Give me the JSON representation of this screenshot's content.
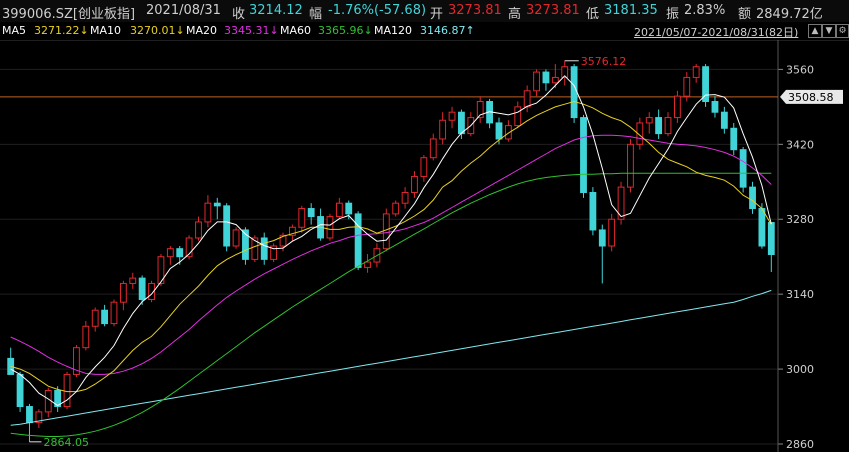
{
  "header": {
    "code": "399006.SZ[创业板指]",
    "date": "2021/08/31",
    "close_label": "收",
    "close": "3214.12",
    "change_label": "幅",
    "change": "-1.76%(-57.68)",
    "open_label": "开",
    "open": "3273.81",
    "high_label": "高",
    "high": "3273.81",
    "low_label": "低",
    "low": "3181.35",
    "amp_label": "振",
    "amp": "2.83%",
    "amount_label": "额",
    "amount": "2849.72亿"
  },
  "ma_bar": {
    "ma5_label": "MA5",
    "ma5": "3271.22↓",
    "ma10_label": "MA10",
    "ma10": "3270.01↓",
    "ma20_label": "MA20",
    "ma20": "3345.31↓",
    "ma60_label": "MA60",
    "ma60": "3365.96↓",
    "ma120_label": "MA120",
    "ma120": "3146.87↑",
    "range": "2021/05/07-2021/08/31(82日)"
  },
  "colors": {
    "up": "#e0282d",
    "down": "#40d4d8",
    "ma5": "#ffffff",
    "ma10": "#e8d020",
    "ma20": "#e030e0",
    "ma60": "#30c030",
    "ma120": "#80e8f0",
    "hline": "#c06020",
    "price_tag_bg": "#e8e8e8",
    "axis_text": "#cfcfcf"
  },
  "icons": [
    "up-arrow-icon",
    "down-arrow-icon",
    "gear-icon"
  ],
  "chart_data": {
    "type": "candlestick",
    "ylim": [
      2860,
      3600
    ],
    "y_ticks": [
      2860,
      3000,
      3140,
      3280,
      3420,
      3560
    ],
    "x_range": [
      "2021/05/07",
      "2021/08/31"
    ],
    "hline": 3508.58,
    "hline_label": "3508.58",
    "high_mark": {
      "value": 3576.12,
      "label": "3576.12",
      "index": 59
    },
    "low_mark": {
      "value": 2864.05,
      "label": "2864.05",
      "index": 2
    },
    "candles": [
      [
        3020,
        2990,
        2990,
        3040
      ],
      [
        2990,
        2930,
        2920,
        2995
      ],
      [
        2930,
        2900,
        2864,
        2935
      ],
      [
        2900,
        2920,
        2890,
        2925
      ],
      [
        2920,
        2960,
        2910,
        2965
      ],
      [
        2960,
        2930,
        2920,
        2968
      ],
      [
        2930,
        2990,
        2925,
        2995
      ],
      [
        2990,
        3040,
        2985,
        3045
      ],
      [
        3040,
        3080,
        3035,
        3090
      ],
      [
        3080,
        3110,
        3070,
        3115
      ],
      [
        3110,
        3085,
        3080,
        3120
      ],
      [
        3085,
        3125,
        3080,
        3130
      ],
      [
        3125,
        3160,
        3110,
        3165
      ],
      [
        3160,
        3170,
        3150,
        3180
      ],
      [
        3170,
        3130,
        3120,
        3175
      ],
      [
        3130,
        3160,
        3125,
        3165
      ],
      [
        3160,
        3210,
        3155,
        3215
      ],
      [
        3210,
        3225,
        3195,
        3230
      ],
      [
        3225,
        3210,
        3195,
        3230
      ],
      [
        3210,
        3245,
        3205,
        3250
      ],
      [
        3245,
        3275,
        3240,
        3285
      ],
      [
        3275,
        3310,
        3265,
        3325
      ],
      [
        3310,
        3305,
        3280,
        3320
      ],
      [
        3305,
        3230,
        3220,
        3310
      ],
      [
        3230,
        3260,
        3225,
        3265
      ],
      [
        3260,
        3205,
        3195,
        3265
      ],
      [
        3205,
        3245,
        3200,
        3250
      ],
      [
        3245,
        3205,
        3195,
        3255
      ],
      [
        3205,
        3230,
        3200,
        3235
      ],
      [
        3230,
        3250,
        3220,
        3255
      ],
      [
        3250,
        3265,
        3240,
        3270
      ],
      [
        3265,
        3300,
        3255,
        3305
      ],
      [
        3300,
        3285,
        3270,
        3310
      ],
      [
        3285,
        3245,
        3240,
        3300
      ],
      [
        3245,
        3285,
        3240,
        3290
      ],
      [
        3285,
        3310,
        3280,
        3320
      ],
      [
        3310,
        3290,
        3280,
        3315
      ],
      [
        3290,
        3190,
        3185,
        3295
      ],
      [
        3190,
        3200,
        3180,
        3215
      ],
      [
        3200,
        3225,
        3190,
        3235
      ],
      [
        3225,
        3290,
        3220,
        3300
      ],
      [
        3290,
        3310,
        3285,
        3315
      ],
      [
        3310,
        3330,
        3300,
        3340
      ],
      [
        3330,
        3360,
        3320,
        3370
      ],
      [
        3360,
        3395,
        3350,
        3400
      ],
      [
        3395,
        3430,
        3390,
        3440
      ],
      [
        3430,
        3465,
        3420,
        3480
      ],
      [
        3465,
        3480,
        3450,
        3490
      ],
      [
        3480,
        3440,
        3430,
        3485
      ],
      [
        3440,
        3470,
        3435,
        3480
      ],
      [
        3470,
        3500,
        3460,
        3510
      ],
      [
        3500,
        3460,
        3450,
        3505
      ],
      [
        3460,
        3430,
        3420,
        3470
      ],
      [
        3430,
        3455,
        3425,
        3465
      ],
      [
        3455,
        3490,
        3450,
        3500
      ],
      [
        3490,
        3520,
        3480,
        3530
      ],
      [
        3520,
        3555,
        3510,
        3560
      ],
      [
        3555,
        3535,
        3520,
        3560
      ],
      [
        3535,
        3545,
        3525,
        3570
      ],
      [
        3545,
        3565,
        3530,
        3576.12
      ],
      [
        3565,
        3470,
        3460,
        3570
      ],
      [
        3470,
        3330,
        3320,
        3475
      ],
      [
        3330,
        3260,
        3250,
        3340
      ],
      [
        3260,
        3230,
        3160,
        3270
      ],
      [
        3230,
        3280,
        3220,
        3290
      ],
      [
        3280,
        3340,
        3270,
        3350
      ],
      [
        3340,
        3420,
        3330,
        3430
      ],
      [
        3420,
        3460,
        3410,
        3470
      ],
      [
        3460,
        3470,
        3440,
        3480
      ],
      [
        3470,
        3440,
        3430,
        3485
      ],
      [
        3440,
        3470,
        3435,
        3480
      ],
      [
        3470,
        3510,
        3460,
        3520
      ],
      [
        3510,
        3545,
        3500,
        3555
      ],
      [
        3545,
        3565,
        3535,
        3570
      ],
      [
        3565,
        3500,
        3490,
        3570
      ],
      [
        3500,
        3480,
        3470,
        3510
      ],
      [
        3480,
        3450,
        3440,
        3490
      ],
      [
        3450,
        3410,
        3400,
        3460
      ],
      [
        3410,
        3340,
        3330,
        3415
      ],
      [
        3340,
        3300,
        3290,
        3350
      ],
      [
        3300,
        3230,
        3225,
        3310
      ],
      [
        3273.81,
        3214.12,
        3181.35,
        3273.81
      ]
    ],
    "ma5": [
      3000,
      2990,
      2975,
      2955,
      2944,
      2932,
      2942,
      2958,
      2984,
      3004,
      3022,
      3044,
      3076,
      3104,
      3126,
      3140,
      3163,
      3188,
      3200,
      3215,
      3235,
      3259,
      3275,
      3275,
      3270,
      3252,
      3240,
      3231,
      3225,
      3226,
      3239,
      3248,
      3261,
      3270,
      3269,
      3281,
      3287,
      3268,
      3252,
      3239,
      3241,
      3263,
      3286,
      3309,
      3339,
      3364,
      3393,
      3420,
      3441,
      3455,
      3475,
      3481,
      3478,
      3475,
      3480,
      3491,
      3497,
      3512,
      3530,
      3548,
      3530,
      3490,
      3438,
      3375,
      3307,
      3285,
      3291,
      3324,
      3357,
      3384,
      3411,
      3444,
      3470,
      3495,
      3512,
      3513,
      3508,
      3488,
      3440,
      3396,
      3343,
      3271
    ],
    "ma10": [
      3005,
      3000,
      2992,
      2980,
      2968,
      2962,
      2958,
      2958,
      2962,
      2972,
      2984,
      2997,
      3016,
      3035,
      3050,
      3061,
      3079,
      3100,
      3121,
      3138,
      3155,
      3175,
      3193,
      3205,
      3214,
      3222,
      3229,
      3235,
      3240,
      3248,
      3253,
      3258,
      3265,
      3265,
      3261,
      3261,
      3265,
      3266,
      3262,
      3254,
      3260,
      3267,
      3276,
      3286,
      3298,
      3316,
      3340,
      3352,
      3370,
      3385,
      3398,
      3414,
      3428,
      3441,
      3452,
      3464,
      3474,
      3482,
      3490,
      3495,
      3500,
      3495,
      3488,
      3478,
      3470,
      3464,
      3452,
      3437,
      3422,
      3405,
      3392,
      3385,
      3378,
      3368,
      3362,
      3358,
      3353,
      3342,
      3325,
      3315,
      3300,
      3270
    ],
    "ma20": [
      3060,
      3052,
      3043,
      3033,
      3022,
      3013,
      3005,
      2998,
      2992,
      2990,
      2990,
      2992,
      2996,
      3002,
      3010,
      3020,
      3032,
      3046,
      3060,
      3074,
      3090,
      3105,
      3120,
      3134,
      3146,
      3157,
      3168,
      3178,
      3187,
      3196,
      3205,
      3213,
      3221,
      3228,
      3235,
      3240,
      3246,
      3250,
      3252,
      3253,
      3255,
      3258,
      3262,
      3268,
      3274,
      3282,
      3292,
      3302,
      3312,
      3322,
      3332,
      3342,
      3352,
      3362,
      3372,
      3382,
      3392,
      3402,
      3412,
      3420,
      3428,
      3433,
      3436,
      3437,
      3437,
      3436,
      3434,
      3431,
      3428,
      3425,
      3422,
      3420,
      3419,
      3417,
      3414,
      3410,
      3405,
      3398,
      3388,
      3376,
      3362,
      3345
    ],
    "ma60": [
      2880,
      2878,
      2876,
      2875,
      2874,
      2874,
      2875,
      2877,
      2880,
      2884,
      2889,
      2895,
      2902,
      2910,
      2919,
      2929,
      2940,
      2952,
      2964,
      2977,
      2990,
      3003,
      3016,
      3029,
      3042,
      3055,
      3068,
      3080,
      3092,
      3104,
      3116,
      3127,
      3138,
      3149,
      3160,
      3171,
      3182,
      3192,
      3202,
      3212,
      3222,
      3232,
      3242,
      3252,
      3262,
      3272,
      3282,
      3292,
      3301,
      3310,
      3318,
      3326,
      3333,
      3340,
      3346,
      3351,
      3355,
      3358,
      3360,
      3362,
      3363,
      3364,
      3364,
      3365,
      3365,
      3366,
      3366,
      3366,
      3366,
      3366,
      3366,
      3366,
      3366,
      3366,
      3366,
      3366,
      3366,
      3366,
      3366,
      3366,
      3366,
      3366
    ],
    "ma120": [
      2895,
      2897,
      2900,
      2903,
      2906,
      2909,
      2912,
      2915,
      2918,
      2921,
      2924,
      2927,
      2930,
      2933,
      2936,
      2939,
      2942,
      2945,
      2948,
      2951,
      2954,
      2957,
      2960,
      2963,
      2966,
      2969,
      2972,
      2975,
      2978,
      2981,
      2984,
      2987,
      2990,
      2993,
      2996,
      2999,
      3002,
      3005,
      3008,
      3011,
      3014,
      3017,
      3020,
      3023,
      3026,
      3029,
      3032,
      3035,
      3038,
      3041,
      3044,
      3047,
      3050,
      3053,
      3056,
      3059,
      3062,
      3065,
      3068,
      3071,
      3074,
      3077,
      3080,
      3083,
      3086,
      3089,
      3092,
      3095,
      3098,
      3101,
      3104,
      3107,
      3110,
      3113,
      3116,
      3119,
      3122,
      3125,
      3130,
      3136,
      3141,
      3147
    ]
  }
}
